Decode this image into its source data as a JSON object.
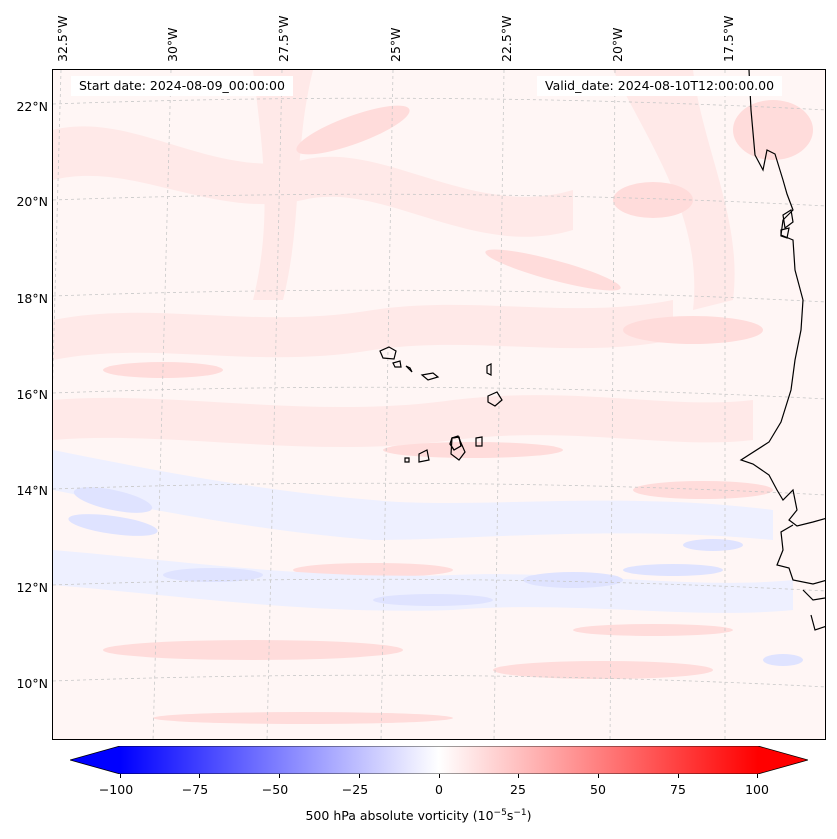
{
  "map": {
    "start_date": "Start date: 2024-08-09_00:00:00",
    "valid_date": "Valid_date: 2024-08-10T12:00:00.00",
    "longitude_labels": [
      "32.5°W",
      "30°W",
      "27.5°W",
      "25°W",
      "22.5°W",
      "20°W",
      "17.5°W"
    ],
    "latitude_labels": [
      "22°N",
      "20°N",
      "18°N",
      "16°N",
      "14°N",
      "12°N",
      "10°N"
    ],
    "field_colors": {
      "background": "#fff6f5",
      "positive_weak": "#ffe6e6",
      "positive_mid": "#ffd2d2",
      "negative_weak": "#eef0ff",
      "negative_mid": "#dfe3ff",
      "coastline": "#000000",
      "gridline": "#c8c8c8"
    }
  },
  "colorbar": {
    "label_prefix": "500 hPa absolute vorticity (10",
    "label_exp1": "−5",
    "label_mid": "s",
    "label_exp2": "−1",
    "label_suffix": ")",
    "ticks": [
      "−100",
      "−75",
      "−50",
      "−25",
      "0",
      "25",
      "50",
      "75",
      "100"
    ],
    "tick_values": [
      -100,
      -75,
      -50,
      -25,
      0,
      25,
      50,
      75,
      100
    ],
    "range": [
      -100,
      100
    ],
    "min_color": "#0000ff",
    "mid_color": "#ffffff",
    "max_color": "#ff0000"
  }
}
